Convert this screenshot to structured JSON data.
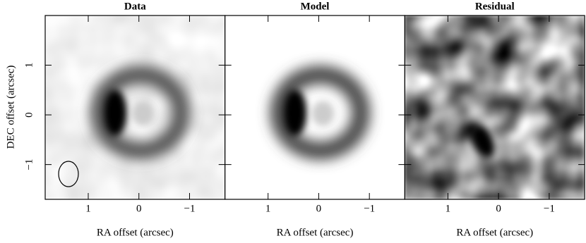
{
  "chart_data": {
    "type": "image",
    "xlabel": "RA offset (arcsec)",
    "ylabel": "DEC offset (arcsec)",
    "panels": [
      {
        "title": "Data"
      },
      {
        "title": "Model"
      },
      {
        "title": "Residual"
      }
    ],
    "xlim": [
      1.85,
      -1.7
    ],
    "ylim": [
      -1.7,
      2.0
    ],
    "xticks": [
      1,
      0,
      {
        "value": -1,
        "label": "−1"
      }
    ],
    "yticks": [
      {
        "value": -1,
        "label": "−1"
      },
      0,
      1
    ]
  }
}
